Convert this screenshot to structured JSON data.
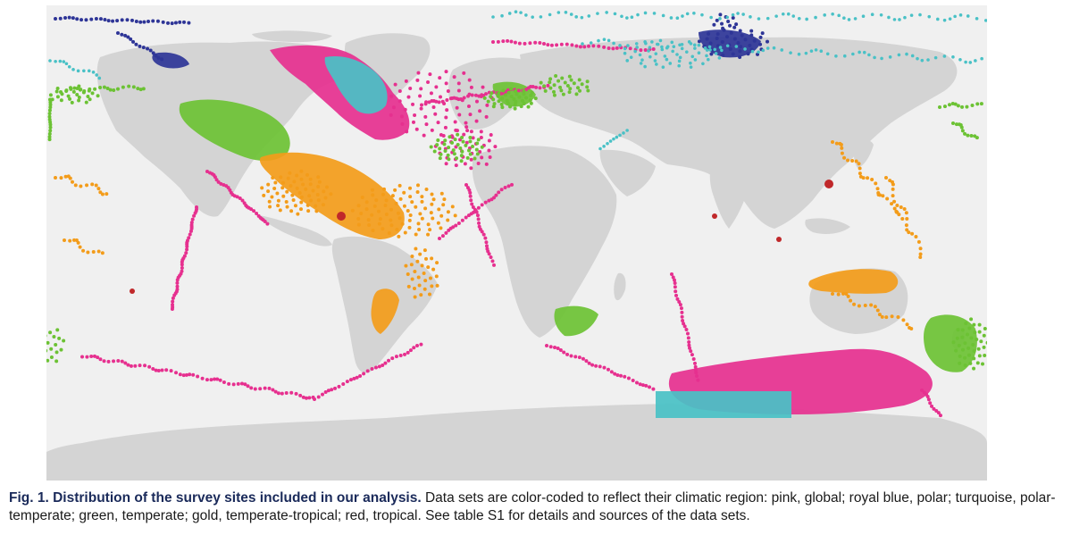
{
  "figure": {
    "colors": {
      "ocean": "#f0f0f0",
      "land": "#d4d4d4",
      "pink": "#e6308f",
      "royal_blue": "#2e3597",
      "turquoise": "#49c1c6",
      "green": "#6cc234",
      "gold": "#f39c1a",
      "red": "#c0282a"
    }
  },
  "caption": {
    "label": "Fig. 1.",
    "headline": "Distribution of the survey sites included in our analysis.",
    "body": "Data sets are color-coded to reflect their climatic region: pink, global; royal blue, polar; turquoise, polar-temperate; green, temperate; gold, temperate-tropical; red, tropical. See table S1 for details and sources of the data sets."
  }
}
